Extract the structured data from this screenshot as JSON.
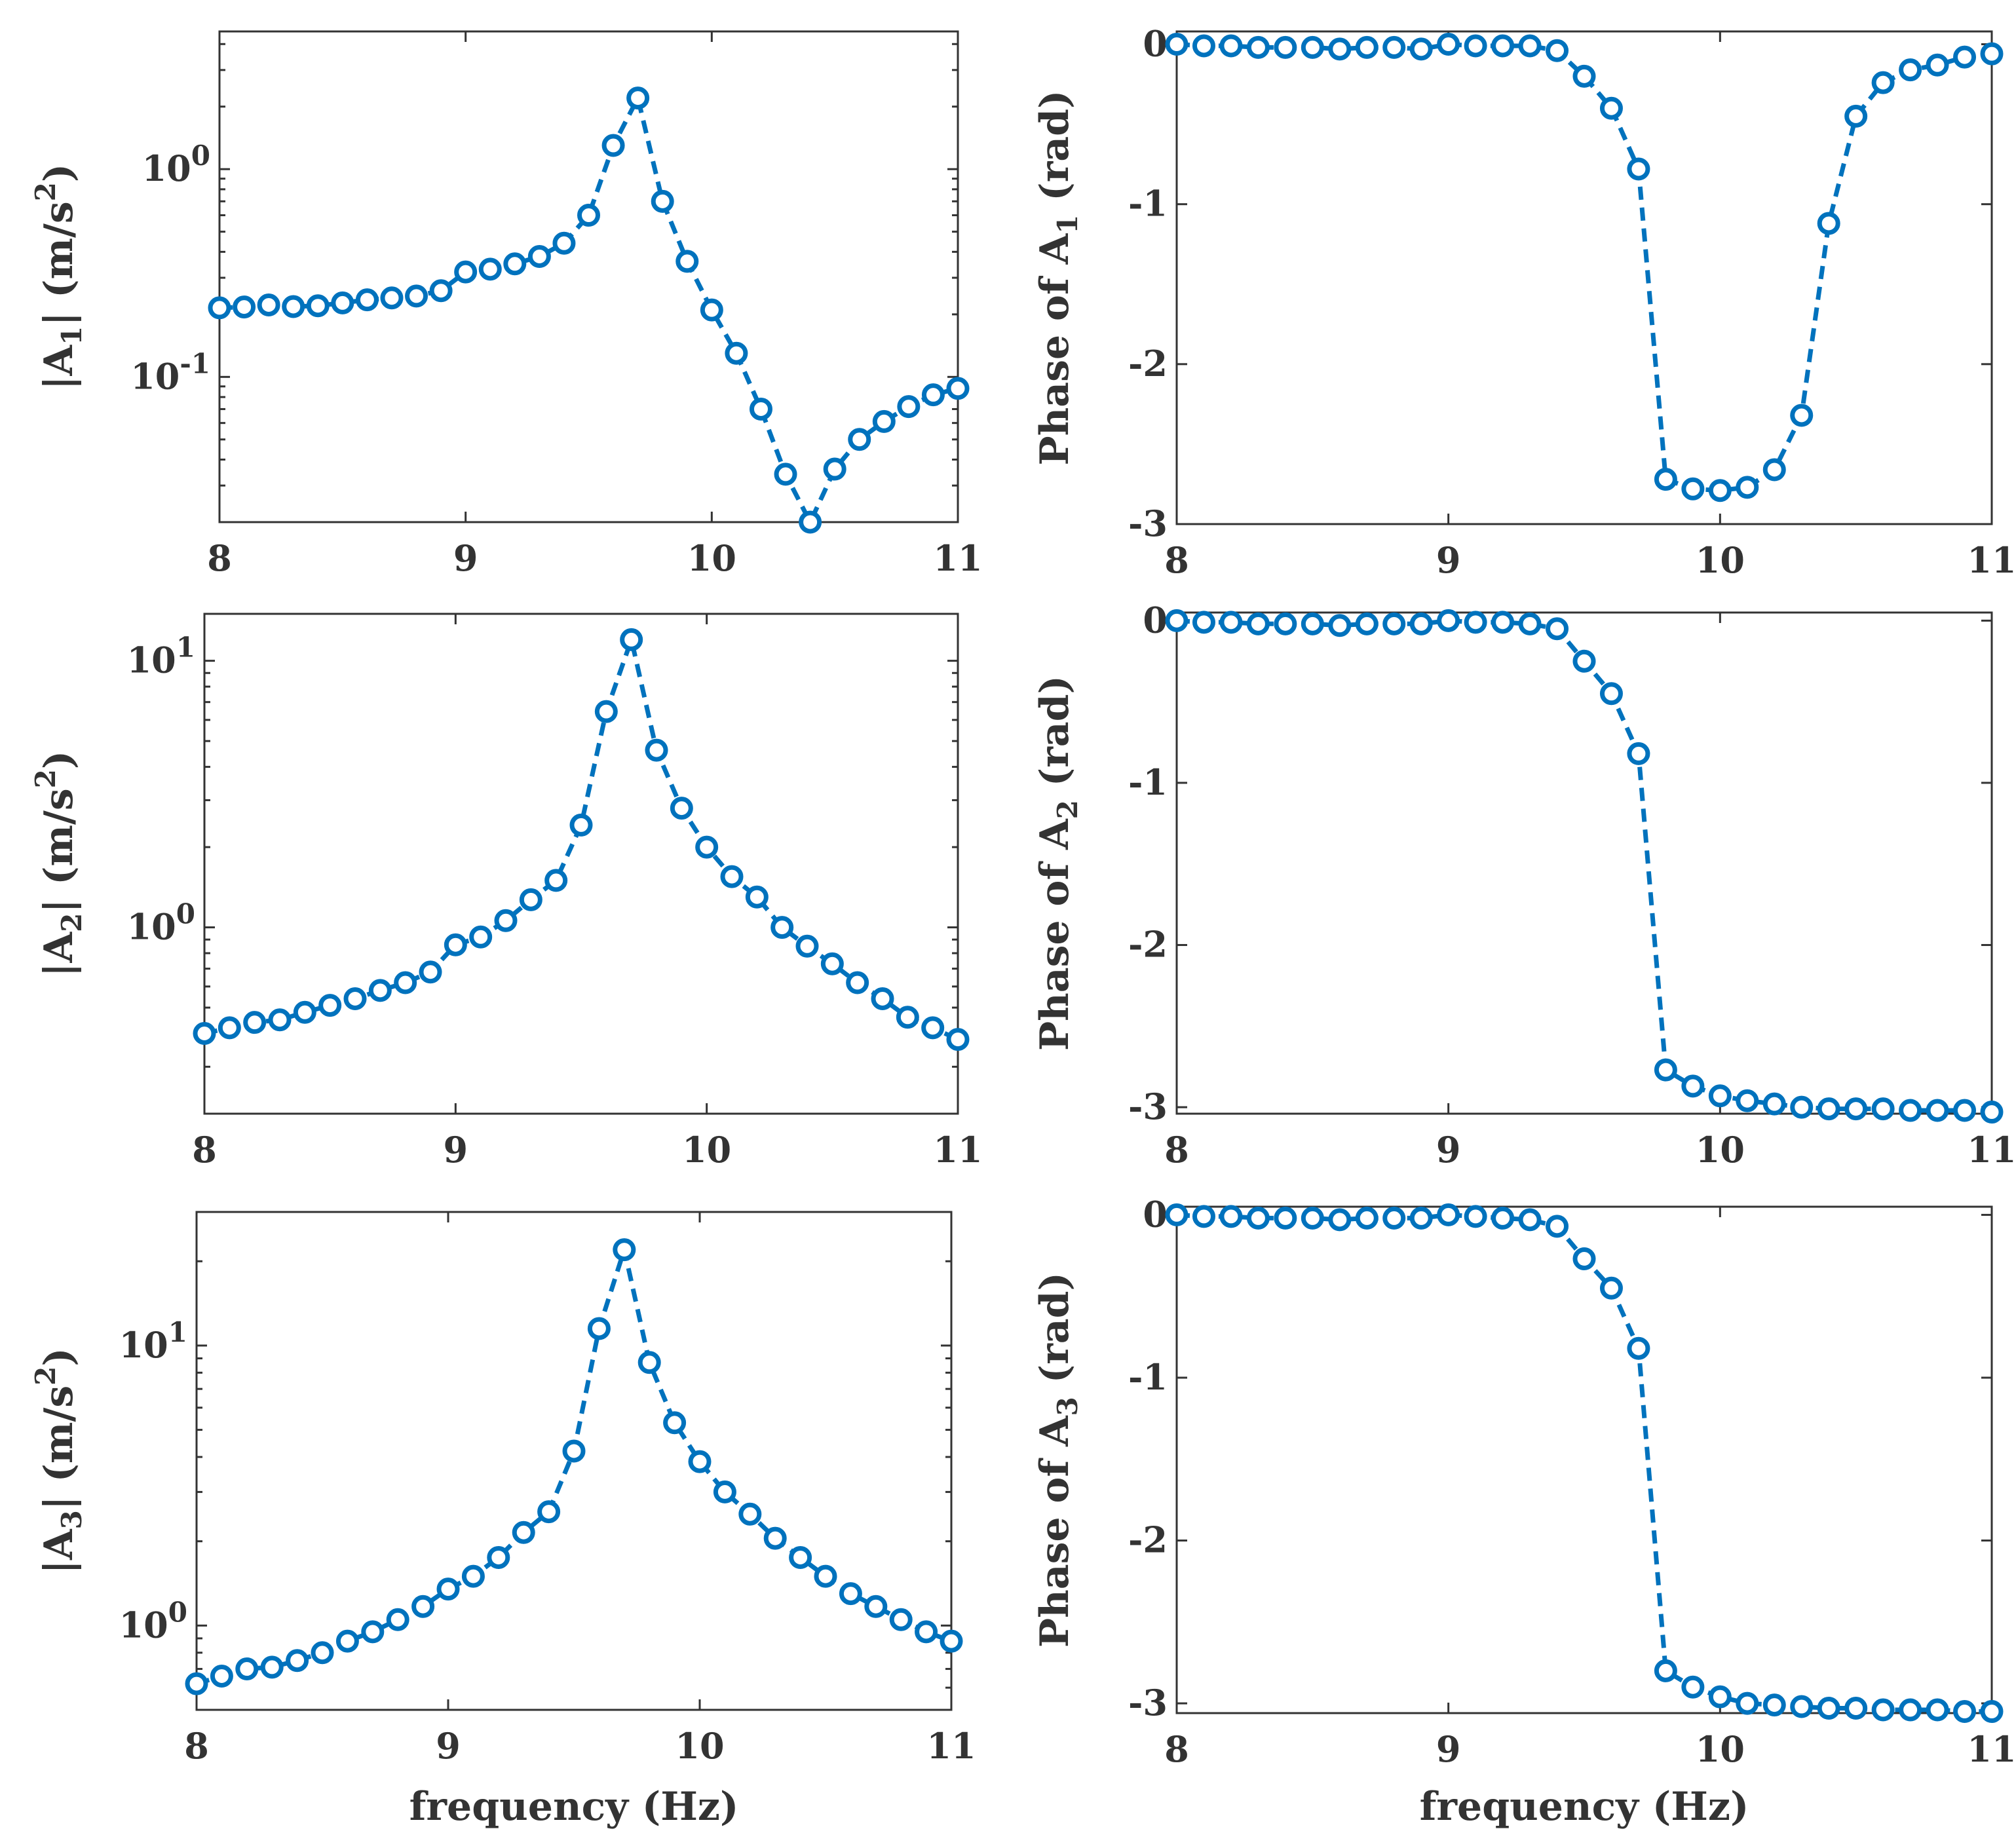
{
  "colors": {
    "series": "#0072BD",
    "axis": "#333333",
    "background": "#ffffff"
  },
  "chart_data": [
    {
      "id": "mag1",
      "type": "line",
      "scale": "log",
      "title": "",
      "xlabel": "",
      "ylabel": {
        "pre": "|A",
        "sub": "1",
        "post": "| (m/s",
        "sup": "2",
        "end": ")"
      },
      "xlim": [
        8,
        11
      ],
      "ylim": [
        0.02,
        4.6
      ],
      "xticks": [
        8,
        9,
        10,
        11
      ],
      "xtick_labels": [
        "8",
        "9",
        "10",
        "11"
      ],
      "yticks": [
        {
          "value": 1,
          "base": "10",
          "exp": "0"
        },
        {
          "value": 0.1,
          "base": "10",
          "exp": "-1"
        }
      ],
      "x": [
        8,
        8.1,
        8.2,
        8.3,
        8.4,
        8.5,
        8.6,
        8.7,
        8.8,
        8.9,
        9,
        9.1,
        9.2,
        9.3,
        9.4,
        9.5,
        9.6,
        9.7,
        9.8,
        9.9,
        10,
        10.1,
        10.2,
        10.3,
        10.4,
        10.5,
        10.6,
        10.7,
        10.8,
        10.9,
        11
      ],
      "y": [
        0.215,
        0.217,
        0.222,
        0.218,
        0.22,
        0.227,
        0.235,
        0.24,
        0.245,
        0.26,
        0.32,
        0.33,
        0.35,
        0.38,
        0.44,
        0.6,
        1.3,
        2.2,
        0.7,
        0.36,
        0.21,
        0.13,
        0.07,
        0.034,
        0.02,
        0.036,
        0.05,
        0.061,
        0.072,
        0.082,
        0.088
      ]
    },
    {
      "id": "phase1",
      "type": "line",
      "scale": "linear",
      "title": "",
      "xlabel": "",
      "ylabel": {
        "pre": "Phase of A",
        "sub": "1",
        "post": " (rad)",
        "sup": "",
        "end": ""
      },
      "xlim": [
        8,
        11
      ],
      "ylim": [
        -3,
        0.08
      ],
      "xticks": [
        8,
        9,
        10,
        11
      ],
      "xtick_labels": [
        "8",
        "9",
        "10",
        "11"
      ],
      "yticks": [
        {
          "value": 0,
          "label": "0"
        },
        {
          "value": -1,
          "label": "-1"
        },
        {
          "value": -2,
          "label": "-2"
        },
        {
          "value": -3,
          "label": "-3"
        }
      ],
      "x": [
        8,
        8.1,
        8.2,
        8.3,
        8.4,
        8.5,
        8.6,
        8.7,
        8.8,
        8.9,
        9,
        9.1,
        9.2,
        9.3,
        9.4,
        9.5,
        9.6,
        9.7,
        9.8,
        9.9,
        10,
        10.1,
        10.2,
        10.3,
        10.4,
        10.5,
        10.6,
        10.7,
        10.8,
        10.9,
        11
      ],
      "y": [
        0,
        -0.01,
        -0.01,
        -0.02,
        -0.02,
        -0.02,
        -0.03,
        -0.02,
        -0.02,
        -0.03,
        0,
        -0.01,
        -0.01,
        -0.01,
        -0.04,
        -0.2,
        -0.4,
        -0.78,
        -2.72,
        -2.78,
        -2.79,
        -2.77,
        -2.66,
        -2.32,
        -1.12,
        -0.45,
        -0.24,
        -0.16,
        -0.13,
        -0.08,
        -0.06
      ]
    },
    {
      "id": "mag2",
      "type": "line",
      "scale": "log",
      "title": "",
      "xlabel": "",
      "ylabel": {
        "pre": "|A",
        "sub": "2",
        "post": "| (m/s",
        "sup": "2",
        "end": ")"
      },
      "xlim": [
        8,
        11
      ],
      "ylim": [
        0.2,
        15
      ],
      "xticks": [
        8,
        9,
        10,
        11
      ],
      "xtick_labels": [
        "8",
        "9",
        "10",
        "11"
      ],
      "yticks": [
        {
          "value": 10,
          "base": "10",
          "exp": "1"
        },
        {
          "value": 1,
          "base": "10",
          "exp": "0"
        }
      ],
      "x": [
        8,
        8.1,
        8.2,
        8.3,
        8.4,
        8.5,
        8.6,
        8.7,
        8.8,
        8.9,
        9,
        9.1,
        9.2,
        9.3,
        9.4,
        9.5,
        9.6,
        9.7,
        9.8,
        9.9,
        10,
        10.1,
        10.2,
        10.3,
        10.4,
        10.5,
        10.6,
        10.7,
        10.8,
        10.9,
        11
      ],
      "y": [
        0.4,
        0.42,
        0.44,
        0.45,
        0.48,
        0.51,
        0.54,
        0.58,
        0.62,
        0.68,
        0.86,
        0.92,
        1.06,
        1.27,
        1.5,
        2.42,
        6.45,
        12.0,
        4.62,
        2.8,
        2.0,
        1.55,
        1.3,
        1.0,
        0.85,
        0.73,
        0.62,
        0.54,
        0.46,
        0.42,
        0.38
      ]
    },
    {
      "id": "phase2",
      "type": "line",
      "scale": "linear",
      "title": "",
      "xlabel": "",
      "ylabel": {
        "pre": "Phase of A",
        "sub": "2",
        "post": " (rad)",
        "sup": "",
        "end": ""
      },
      "xlim": [
        8,
        11
      ],
      "ylim": [
        -3.04,
        0.05
      ],
      "xticks": [
        8,
        9,
        10,
        11
      ],
      "xtick_labels": [
        "8",
        "9",
        "10",
        "11"
      ],
      "yticks": [
        {
          "value": 0,
          "label": "0"
        },
        {
          "value": -1,
          "label": "-1"
        },
        {
          "value": -2,
          "label": "-2"
        },
        {
          "value": -3,
          "label": "-3"
        }
      ],
      "x": [
        8,
        8.1,
        8.2,
        8.3,
        8.4,
        8.5,
        8.6,
        8.7,
        8.8,
        8.9,
        9,
        9.1,
        9.2,
        9.3,
        9.4,
        9.5,
        9.6,
        9.7,
        9.8,
        9.9,
        10,
        10.1,
        10.2,
        10.3,
        10.4,
        10.5,
        10.6,
        10.7,
        10.8,
        10.9,
        11
      ],
      "y": [
        0,
        -0.01,
        -0.01,
        -0.02,
        -0.02,
        -0.02,
        -0.03,
        -0.02,
        -0.02,
        -0.02,
        0,
        -0.01,
        -0.01,
        -0.02,
        -0.05,
        -0.25,
        -0.45,
        -0.82,
        -2.77,
        -2.87,
        -2.93,
        -2.96,
        -2.98,
        -3.0,
        -3.01,
        -3.01,
        -3.01,
        -3.02,
        -3.02,
        -3.02,
        -3.03
      ]
    },
    {
      "id": "mag3",
      "type": "line",
      "scale": "log",
      "title": "",
      "xlabel": "frequency (Hz)",
      "ylabel": {
        "pre": "|A",
        "sub": "3",
        "post": "| (m/s",
        "sup": "2",
        "end": ")"
      },
      "xlim": [
        8,
        11
      ],
      "ylim": [
        0.5,
        30
      ],
      "xticks": [
        8,
        9,
        10,
        11
      ],
      "xtick_labels": [
        "8",
        "9",
        "10",
        "11"
      ],
      "yticks": [
        {
          "value": 10,
          "base": "10",
          "exp": "1"
        },
        {
          "value": 1,
          "base": "10",
          "exp": "0"
        }
      ],
      "x": [
        8,
        8.1,
        8.2,
        8.3,
        8.4,
        8.5,
        8.6,
        8.7,
        8.8,
        8.9,
        9,
        9.1,
        9.2,
        9.3,
        9.4,
        9.5,
        9.6,
        9.7,
        9.8,
        9.9,
        10,
        10.1,
        10.2,
        10.3,
        10.4,
        10.5,
        10.6,
        10.7,
        10.8,
        10.9,
        11
      ],
      "y": [
        0.62,
        0.66,
        0.7,
        0.71,
        0.75,
        0.8,
        0.88,
        0.95,
        1.05,
        1.17,
        1.35,
        1.5,
        1.75,
        2.15,
        2.55,
        4.2,
        11.5,
        22.0,
        8.7,
        5.3,
        3.85,
        3.0,
        2.5,
        2.05,
        1.75,
        1.5,
        1.3,
        1.17,
        1.05,
        0.95,
        0.88
      ]
    },
    {
      "id": "phase3",
      "type": "line",
      "scale": "linear",
      "title": "",
      "xlabel": "frequency (Hz)",
      "ylabel": {
        "pre": "Phase of A",
        "sub": "3",
        "post": " (rad)",
        "sup": "",
        "end": ""
      },
      "xlim": [
        8,
        11
      ],
      "ylim": [
        -3.06,
        0.05
      ],
      "xticks": [
        8,
        9,
        10,
        11
      ],
      "xtick_labels": [
        "8",
        "9",
        "10",
        "11"
      ],
      "yticks": [
        {
          "value": 0,
          "label": "0"
        },
        {
          "value": -1,
          "label": "-1"
        },
        {
          "value": -2,
          "label": "-2"
        },
        {
          "value": -3,
          "label": "-3"
        }
      ],
      "x": [
        8,
        8.1,
        8.2,
        8.3,
        8.4,
        8.5,
        8.6,
        8.7,
        8.8,
        8.9,
        9,
        9.1,
        9.2,
        9.3,
        9.4,
        9.5,
        9.6,
        9.7,
        9.8,
        9.9,
        10,
        10.1,
        10.2,
        10.3,
        10.4,
        10.5,
        10.6,
        10.7,
        10.8,
        10.9,
        11
      ],
      "y": [
        0,
        -0.01,
        -0.01,
        -0.02,
        -0.02,
        -0.02,
        -0.03,
        -0.02,
        -0.02,
        -0.02,
        0,
        -0.01,
        -0.02,
        -0.03,
        -0.07,
        -0.27,
        -0.45,
        -0.82,
        -2.8,
        -2.9,
        -2.96,
        -3.0,
        -3.01,
        -3.02,
        -3.03,
        -3.03,
        -3.04,
        -3.04,
        -3.04,
        -3.05,
        -3.05
      ]
    }
  ]
}
